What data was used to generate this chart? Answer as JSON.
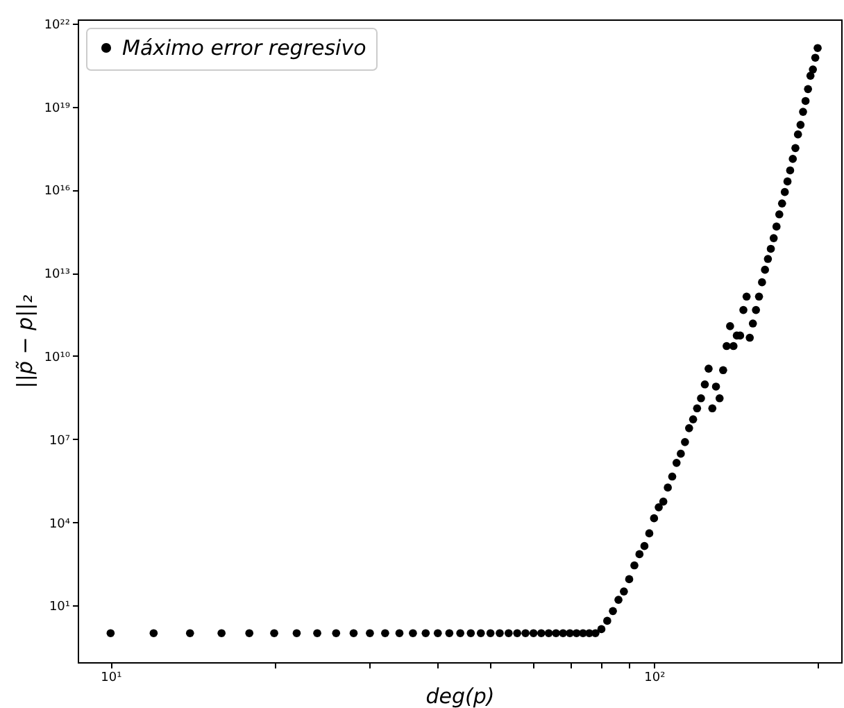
{
  "chart_data": {
    "type": "scatter",
    "xlabel": "deg(p)",
    "ylabel": "||p̃ − p||₂",
    "log": "xy",
    "legend": "top left",
    "marker": "circle",
    "xlim": [
      8.7,
      221
    ],
    "ylim": [
      0.09,
      1.4e+22
    ],
    "xticks": [
      {
        "value": 10,
        "label": "10¹"
      },
      {
        "value": 20,
        "label": null
      },
      {
        "value": 30,
        "label": null
      },
      {
        "value": 40,
        "label": null
      },
      {
        "value": 50,
        "label": null
      },
      {
        "value": 60,
        "label": null
      },
      {
        "value": 70,
        "label": null
      },
      {
        "value": 80,
        "label": null
      },
      {
        "value": 90,
        "label": null
      },
      {
        "value": 100,
        "label": "10²"
      },
      {
        "value": 200,
        "label": null
      }
    ],
    "yticks": [
      {
        "value": 10,
        "label": "10¹"
      },
      {
        "value": 10000,
        "label": "10⁴"
      },
      {
        "value": 10000000.0,
        "label": "10⁷"
      },
      {
        "value": 10000000000.0,
        "label": "10¹⁰"
      },
      {
        "value": 10000000000000.0,
        "label": "10¹³"
      },
      {
        "value": 1e+16,
        "label": "10¹⁶"
      },
      {
        "value": 1e+19,
        "label": "10¹⁹"
      },
      {
        "value": 1e+22,
        "label": "10²²"
      }
    ],
    "x": [
      10,
      12,
      14,
      16,
      18,
      20,
      22,
      24,
      26,
      28,
      30,
      32,
      34,
      36,
      38,
      40,
      42,
      44,
      46,
      48,
      50,
      52,
      54,
      56,
      58,
      60,
      62,
      64,
      66,
      68,
      70,
      72,
      74,
      76,
      78,
      80,
      82,
      84,
      86,
      88,
      90,
      92,
      94,
      96,
      98,
      100,
      102,
      104,
      106,
      108,
      110,
      112,
      114,
      116,
      118,
      120,
      122,
      124,
      126,
      128,
      130,
      132,
      134,
      136,
      138,
      140,
      142,
      144,
      146,
      148,
      150,
      152,
      154,
      156,
      158,
      160,
      162,
      164,
      166,
      168,
      170,
      172,
      174,
      176,
      178,
      180,
      182,
      184,
      186,
      188,
      190,
      192,
      194,
      196,
      198,
      200
    ],
    "series": [
      {
        "name": "Máximo error regresivo",
        "color": "#000000",
        "values": [
          1,
          1,
          1,
          1,
          1,
          1,
          1,
          1,
          1,
          1,
          1,
          1,
          1,
          1,
          1,
          1,
          1,
          1,
          1,
          1,
          1,
          1,
          1,
          1,
          1,
          1,
          1,
          1,
          1,
          1,
          1,
          1,
          1,
          1,
          1,
          1.4,
          2.8,
          6.3,
          16,
          32,
          89,
          280,
          710,
          1400,
          4000,
          14000,
          35000,
          56000,
          180000.0,
          450000.0,
          1400000.0,
          3000000.0,
          7900000.0,
          25000000.0,
          52000000.0,
          130000000.0,
          300000000.0,
          950000000.0,
          3500000000.0,
          130000000.0,
          790000000.0,
          300000000.0,
          3100000000.0,
          23000000000.0,
          120000000000.0,
          23000000000.0,
          55000000000.0,
          55000000000.0,
          460000000000.0,
          1400000000000.0,
          46000000000.0,
          150000000000.0,
          460000000000.0,
          1400000000000.0,
          4600000000000.0,
          13000000000000.0,
          32000000000000.0,
          74000000000000.0,
          180000000000000.0,
          470000000000000.0,
          1300000000000000.0,
          3200000000000000.0,
          8300000000000000.0,
          2e+16,
          5e+16,
          1.3e+17,
          3.2e+17,
          1e+18,
          2.2e+18,
          6.5e+18,
          1.6e+19,
          4.3e+19,
          1.3e+20,
          2.2e+20,
          5.8e+20,
          1.3e+21
        ]
      }
    ]
  }
}
